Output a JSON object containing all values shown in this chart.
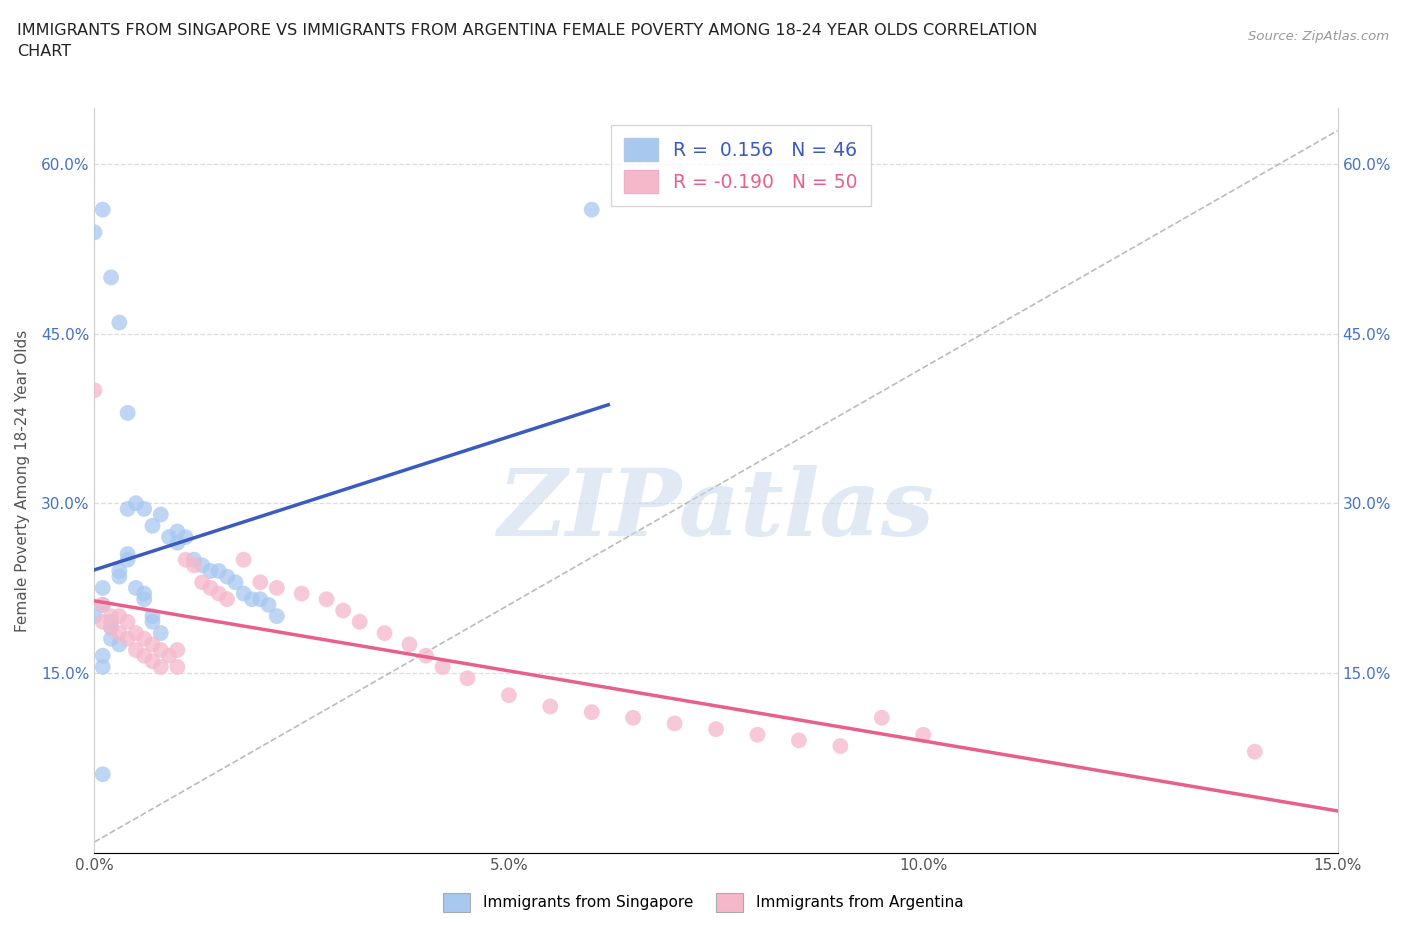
{
  "title": "IMMIGRANTS FROM SINGAPORE VS IMMIGRANTS FROM ARGENTINA FEMALE POVERTY AMONG 18-24 YEAR OLDS CORRELATION\nCHART",
  "source_text": "Source: ZipAtlas.com",
  "ylabel": "Female Poverty Among 18-24 Year Olds",
  "xlim": [
    0.0,
    0.15
  ],
  "ylim": [
    -0.01,
    0.65
  ],
  "xticks": [
    0.0,
    0.05,
    0.1,
    0.15
  ],
  "xticklabels": [
    "0.0%",
    "5.0%",
    "10.0%",
    "15.0%"
  ],
  "yticks": [
    0.0,
    0.15,
    0.3,
    0.45,
    0.6
  ],
  "yticklabels_left": [
    "",
    "15.0%",
    "30.0%",
    "45.0%",
    "60.0%"
  ],
  "yticklabels_right": [
    "15.0%",
    "30.0%",
    "45.0%",
    "60.0%"
  ],
  "yticks_right": [
    0.15,
    0.3,
    0.45,
    0.6
  ],
  "singapore_color": "#a8c8f0",
  "argentina_color": "#f5b8cb",
  "singapore_label": "Immigrants from Singapore",
  "argentina_label": "Immigrants from Argentina",
  "R_singapore": 0.156,
  "N_singapore": 46,
  "R_argentina": -0.19,
  "N_argentina": 50,
  "watermark": "ZIPatlas",
  "sg_line_color": "#3a5bbf",
  "ar_line_color": "#e8608a",
  "diag_line_color": "#aaaaaa",
  "grid_color": "#dddddd",
  "sg_x": [
    0.004,
    0.005,
    0.006,
    0.007,
    0.008,
    0.009,
    0.01,
    0.01,
    0.011,
    0.012,
    0.013,
    0.014,
    0.015,
    0.016,
    0.017,
    0.018,
    0.019,
    0.02,
    0.021,
    0.022,
    0.003,
    0.003,
    0.004,
    0.004,
    0.005,
    0.006,
    0.006,
    0.007,
    0.007,
    0.008,
    0.001,
    0.001,
    0.002,
    0.002,
    0.002,
    0.003,
    0.0,
    0.001,
    0.001,
    0.0,
    0.001,
    0.002,
    0.003,
    0.004,
    0.06,
    0.001
  ],
  "sg_y": [
    0.295,
    0.3,
    0.295,
    0.28,
    0.29,
    0.27,
    0.275,
    0.265,
    0.27,
    0.25,
    0.245,
    0.24,
    0.24,
    0.235,
    0.23,
    0.22,
    0.215,
    0.215,
    0.21,
    0.2,
    0.24,
    0.235,
    0.255,
    0.25,
    0.225,
    0.215,
    0.22,
    0.2,
    0.195,
    0.185,
    0.225,
    0.21,
    0.19,
    0.195,
    0.18,
    0.175,
    0.2,
    0.165,
    0.155,
    0.54,
    0.56,
    0.5,
    0.46,
    0.38,
    0.56,
    0.06
  ],
  "ar_x": [
    0.001,
    0.001,
    0.002,
    0.002,
    0.003,
    0.003,
    0.004,
    0.004,
    0.005,
    0.005,
    0.006,
    0.006,
    0.007,
    0.007,
    0.008,
    0.008,
    0.009,
    0.01,
    0.01,
    0.011,
    0.012,
    0.013,
    0.014,
    0.015,
    0.016,
    0.018,
    0.02,
    0.022,
    0.025,
    0.028,
    0.03,
    0.032,
    0.035,
    0.038,
    0.04,
    0.042,
    0.045,
    0.05,
    0.055,
    0.06,
    0.065,
    0.07,
    0.075,
    0.08,
    0.085,
    0.09,
    0.095,
    0.1,
    0.14,
    0.0
  ],
  "ar_y": [
    0.21,
    0.195,
    0.2,
    0.19,
    0.2,
    0.185,
    0.195,
    0.18,
    0.185,
    0.17,
    0.18,
    0.165,
    0.175,
    0.16,
    0.17,
    0.155,
    0.165,
    0.17,
    0.155,
    0.25,
    0.245,
    0.23,
    0.225,
    0.22,
    0.215,
    0.25,
    0.23,
    0.225,
    0.22,
    0.215,
    0.205,
    0.195,
    0.185,
    0.175,
    0.165,
    0.155,
    0.145,
    0.13,
    0.12,
    0.115,
    0.11,
    0.105,
    0.1,
    0.095,
    0.09,
    0.085,
    0.11,
    0.095,
    0.08,
    0.4
  ]
}
